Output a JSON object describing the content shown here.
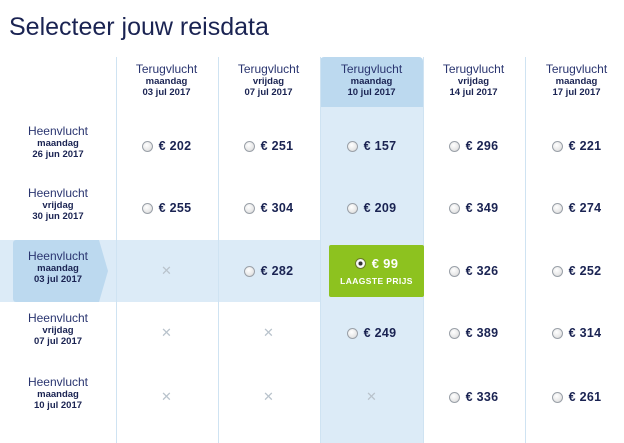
{
  "title": "Selecteer jouw reisdata",
  "colors": {
    "highlight": "#dcebf7",
    "highlight_header": "#bcd9ef",
    "best_price": "#8dc21f",
    "text": "#1a2352"
  },
  "columns": [
    {
      "label": "Terugvlucht",
      "day": "maandag",
      "date": "03 jul 2017"
    },
    {
      "label": "Terugvlucht",
      "day": "vrijdag",
      "date": "07 jul 2017"
    },
    {
      "label": "Terugvlucht",
      "day": "maandag",
      "date": "10 jul 2017"
    },
    {
      "label": "Terugvlucht",
      "day": "vrijdag",
      "date": "14 jul 2017"
    },
    {
      "label": "Terugvlucht",
      "day": "maandag",
      "date": "17 jul 2017"
    }
  ],
  "rows": [
    {
      "label": "Heenvlucht",
      "day": "maandag",
      "date": "26 jun 2017",
      "cells": [
        "€ 202",
        "€ 251",
        "€ 157",
        "€ 296",
        "€ 221"
      ]
    },
    {
      "label": "Heenvlucht",
      "day": "vrijdag",
      "date": "30 jun 2017",
      "cells": [
        "€ 255",
        "€ 304",
        "€ 209",
        "€ 349",
        "€ 274"
      ]
    },
    {
      "label": "Heenvlucht",
      "day": "maandag",
      "date": "03 jul 2017",
      "cells": [
        "",
        "€ 282",
        "€ 99",
        "€ 326",
        "€ 252"
      ]
    },
    {
      "label": "Heenvlucht",
      "day": "vrijdag",
      "date": "07 jul 2017",
      "cells": [
        "",
        "",
        "€ 249",
        "€ 389",
        "€ 314"
      ]
    },
    {
      "label": "Heenvlucht",
      "day": "maandag",
      "date": "10 jul 2017",
      "cells": [
        "",
        "",
        "",
        "€ 336",
        "€ 261"
      ]
    }
  ],
  "best": {
    "row": 2,
    "col": 2,
    "price": "€ 99",
    "tag": "LAAGSTE PRIJS"
  },
  "unavailable_symbol": "✕",
  "icons": {
    "unavailable": "close-icon",
    "option": "radio-button"
  }
}
